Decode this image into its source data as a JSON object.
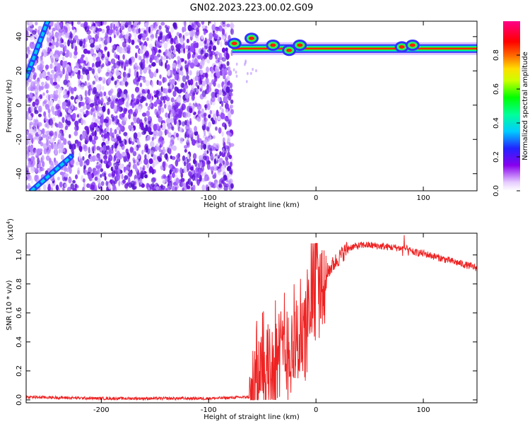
{
  "figure_title": "GN02.2023.223.00.02.G09",
  "chart_data": [
    {
      "type": "heatmap",
      "xlabel": "Height of straight line (km)",
      "ylabel": "Frequency (Hz)",
      "xlim": [
        -270,
        150
      ],
      "ylim": [
        -50,
        49
      ],
      "xticks": [
        -200,
        -100,
        0,
        100
      ],
      "yticks": [
        -40,
        -20,
        0,
        20,
        40
      ],
      "colorbar": {
        "label": "Normalized spectral amplitude",
        "range": [
          0,
          1
        ],
        "ticks": [
          "0.0",
          "0.2",
          "0.4",
          "0.6",
          "0.8"
        ]
      },
      "features": {
        "carrier_frequency_hz": 33,
        "carrier_start_km": -78,
        "carrier_bumps": [
          [
            -76,
            36
          ],
          [
            -60,
            39
          ],
          [
            -40,
            35
          ],
          [
            -25,
            32
          ],
          [
            -15,
            35
          ],
          [
            80,
            34
          ],
          [
            90,
            35
          ]
        ],
        "noisy_region_km": [
          -270,
          -78
        ],
        "diagonal_bands": [
          [
            [
              -270,
              16
            ],
            [
              -250,
              49
            ]
          ],
          [
            [
              -265,
              -50
            ],
            [
              -228,
              -30
            ]
          ]
        ]
      }
    },
    {
      "type": "line",
      "xlabel": "Height of straight line (km)",
      "ylabel": "SNR (10 * v/v)",
      "scale_note": "(x10",
      "scale_exp": "4",
      "scale_close": ")",
      "xlim": [
        -270,
        150
      ],
      "ylim": [
        -0.02,
        1.15
      ],
      "xticks": [
        -200,
        -100,
        0,
        100
      ],
      "yticks": [
        "0.0",
        "0.2",
        "0.4",
        "0.6",
        "0.8",
        "1.0"
      ],
      "line_color": "#ee2222",
      "series": [
        {
          "x": [
            -270,
            -200,
            -150,
            -100,
            -62,
            -55,
            -45,
            -35,
            -25,
            -15,
            -10,
            -5,
            0,
            5,
            10,
            20,
            30,
            45,
            60,
            75,
            85,
            90,
            100,
            110,
            120,
            130,
            140,
            150
          ],
          "y": [
            0.02,
            0.01,
            0.01,
            0.01,
            0.02,
            0.2,
            0.3,
            0.35,
            0.42,
            0.48,
            0.52,
            0.6,
            0.72,
            0.8,
            0.88,
            0.97,
            1.05,
            1.07,
            1.06,
            1.05,
            1.04,
            1.02,
            1.01,
            0.99,
            0.97,
            0.95,
            0.93,
            0.91
          ]
        }
      ]
    }
  ]
}
